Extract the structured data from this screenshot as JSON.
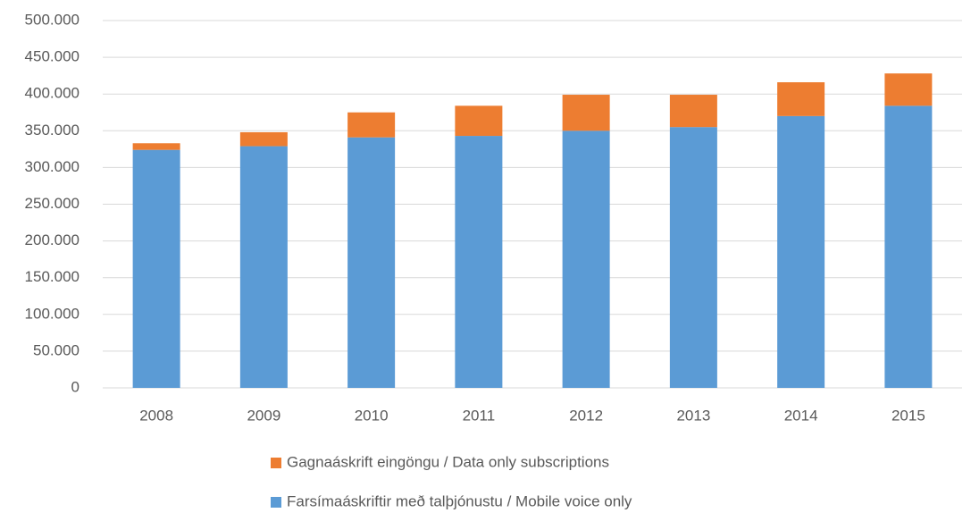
{
  "chart_data": {
    "type": "stacked_bar",
    "categories": [
      "2008",
      "2009",
      "2010",
      "2011",
      "2012",
      "2013",
      "2014",
      "2015"
    ],
    "series": [
      {
        "name": "Farsímaáskriftir með talþjónustu / Mobile voice only",
        "color": "#5b9bd5",
        "values": [
          324000,
          329000,
          341000,
          343000,
          350000,
          355000,
          370000,
          384000
        ]
      },
      {
        "name": "Gagnaáskrift eingöngu / Data only subscriptions",
        "color": "#ed7d31",
        "values": [
          9000,
          19000,
          34000,
          41000,
          49000,
          44000,
          46000,
          44000
        ]
      }
    ],
    "ylim": [
      0,
      500000
    ],
    "yticks": [
      0,
      {
        "value": 50000,
        "label": "50.000"
      },
      {
        "value": 100000,
        "label": "100.000"
      },
      {
        "value": 150000,
        "label": "150.000"
      },
      {
        "value": 200000,
        "label": "200.000"
      },
      {
        "value": 250000,
        "label": "250.000"
      },
      {
        "value": 300000,
        "label": "300.000"
      },
      {
        "value": 350000,
        "label": "350.000"
      },
      {
        "value": 400000,
        "label": "400.000"
      },
      {
        "value": 450000,
        "label": "450.000"
      },
      {
        "value": 500000,
        "label": "500.000"
      }
    ],
    "grid": true
  }
}
